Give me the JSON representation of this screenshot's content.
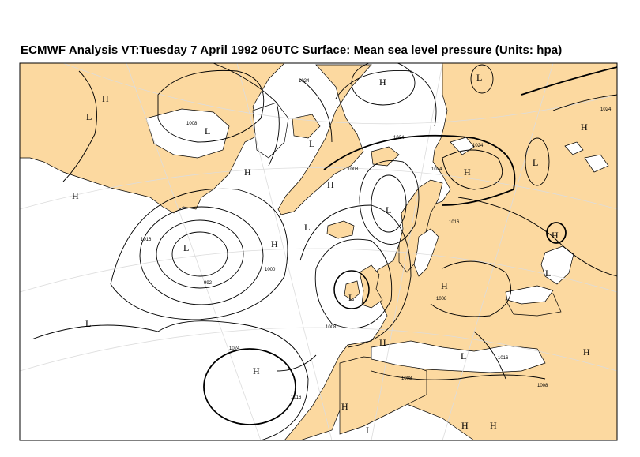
{
  "title": "ECMWF  Analysis VT:Tuesday 7 April 1992 06UTC Surface: Mean sea level pressure (Units: hpa)",
  "colors": {
    "land": "#fcd9a0",
    "sea": "#ffffff",
    "isobar": "#000000",
    "graticule": "#dcdcdc",
    "border": "#000000"
  },
  "pressure_centers": [
    {
      "label": "H"
    },
    {
      "label": "L"
    },
    {
      "label": "L"
    },
    {
      "label": "H"
    },
    {
      "label": "H"
    },
    {
      "label": "L"
    },
    {
      "label": "H"
    },
    {
      "label": "L"
    },
    {
      "label": "H"
    },
    {
      "label": "L"
    },
    {
      "label": "L"
    },
    {
      "label": "H"
    },
    {
      "label": "L"
    },
    {
      "label": "H"
    },
    {
      "label": "H"
    },
    {
      "label": "L"
    },
    {
      "label": "H"
    },
    {
      "label": "H"
    },
    {
      "label": "L"
    },
    {
      "label": "H"
    },
    {
      "label": "L"
    },
    {
      "label": "L"
    },
    {
      "label": "H"
    },
    {
      "label": "H"
    },
    {
      "label": "L"
    },
    {
      "label": "H"
    },
    {
      "label": "L"
    },
    {
      "label": "H"
    },
    {
      "label": "H"
    }
  ],
  "isobar_labels": [
    "1008",
    "1024",
    "1024",
    "1008",
    "1024",
    "1024",
    "1016",
    "1000",
    "992",
    "1008",
    "1008",
    "1016",
    "1024",
    "1016",
    "1024",
    "1008",
    "1016",
    "1008"
  ]
}
